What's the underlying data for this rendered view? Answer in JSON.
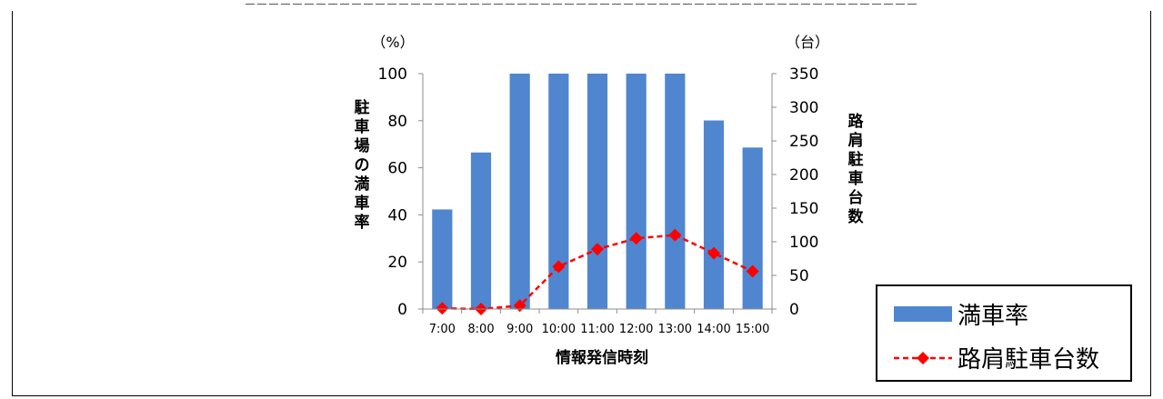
{
  "chart_data": {
    "type": "bar",
    "categories": [
      "7:00",
      "8:00",
      "9:00",
      "10:00",
      "11:00",
      "12:00",
      "13:00",
      "14:00",
      "15:00"
    ],
    "series": [
      {
        "name": "満車率",
        "type": "bar",
        "axis": "left",
        "color": "#4F86CF",
        "values": [
          42.3,
          66.5,
          100,
          100,
          100,
          100,
          100,
          80.1,
          68.6
        ]
      },
      {
        "name": "路肩駐車台数",
        "type": "line",
        "axis": "right",
        "color": "#FF0000",
        "line_style": "dashed",
        "marker": "diamond",
        "values": [
          1,
          0,
          5,
          63,
          89,
          105,
          110,
          83,
          56
        ]
      }
    ],
    "xlabel": "情報発信時刻",
    "ylabel": "駐車場の満車率",
    "y2label": "路肩駐車台数",
    "yunit": "（%）",
    "y2unit": "（台）",
    "ylim": [
      0,
      100
    ],
    "yticks": [
      0,
      20,
      40,
      60,
      80,
      100
    ],
    "y2lim": [
      0,
      350
    ],
    "y2ticks": [
      0,
      50,
      100,
      150,
      200,
      250,
      300,
      350
    ],
    "grid": false,
    "legend_position": "bottom-right"
  }
}
